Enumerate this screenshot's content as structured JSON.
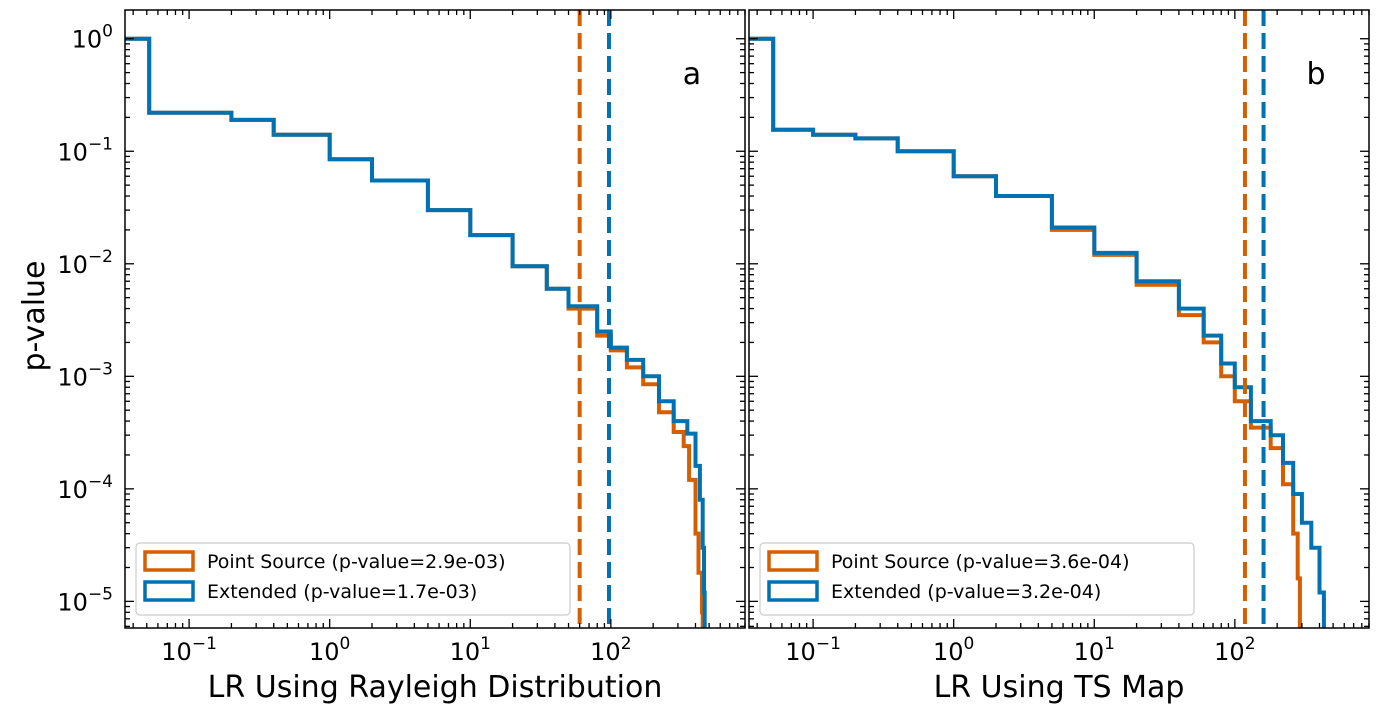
{
  "chart_data": [
    {
      "type": "line",
      "panel_label": "a",
      "xlabel": "LR Using Rayleigh Distribution",
      "ylabel": "p-value",
      "xscale": "log",
      "yscale": "log",
      "xlim": [
        0.035,
        900
      ],
      "ylim": [
        5.8e-06,
        1.8
      ],
      "x_ticks": [
        {
          "value": 0.1,
          "label": "10",
          "exp": "−1"
        },
        {
          "value": 1,
          "label": "10",
          "exp": "0"
        },
        {
          "value": 10,
          "label": "10",
          "exp": "1"
        },
        {
          "value": 100,
          "label": "10",
          "exp": "2"
        }
      ],
      "y_ticks": [
        {
          "value": 1,
          "label": "10",
          "exp": "0"
        },
        {
          "value": 0.1,
          "label": "10",
          "exp": "−1"
        },
        {
          "value": 0.01,
          "label": "10",
          "exp": "−2"
        },
        {
          "value": 0.001,
          "label": "10",
          "exp": "−3"
        },
        {
          "value": 0.0001,
          "label": "10",
          "exp": "−4"
        },
        {
          "value": 1e-05,
          "label": "10",
          "exp": "−5"
        }
      ],
      "grid": false,
      "legend_position": "lower-left",
      "series": [
        {
          "name": "Point Source (p-value=2.9e-03)",
          "color": "#d55e00",
          "vline": 60,
          "points": [
            [
              0.035,
              1.0
            ],
            [
              0.052,
              1.0
            ],
            [
              0.052,
              0.22
            ],
            [
              0.1,
              0.22
            ],
            [
              0.2,
              0.19
            ],
            [
              0.4,
              0.14
            ],
            [
              1,
              0.085
            ],
            [
              2,
              0.055
            ],
            [
              5,
              0.03
            ],
            [
              10,
              0.018
            ],
            [
              20,
              0.0095
            ],
            [
              35,
              0.006
            ],
            [
              50,
              0.004
            ],
            [
              80,
              0.0023
            ],
            [
              100,
              0.0017
            ],
            [
              130,
              0.0012
            ],
            [
              170,
              0.00085
            ],
            [
              220,
              0.00048
            ],
            [
              280,
              0.00032
            ],
            [
              330,
              0.00024
            ],
            [
              360,
              0.00012
            ],
            [
              400,
              4e-05
            ],
            [
              420,
              1.8e-05
            ],
            [
              445,
              8e-06
            ],
            [
              450,
              5.8e-06
            ]
          ]
        },
        {
          "name": "Extended (p-value=1.7e-03)",
          "color": "#0072b2",
          "vline": 97,
          "points": [
            [
              0.035,
              1.0
            ],
            [
              0.052,
              1.0
            ],
            [
              0.052,
              0.22
            ],
            [
              0.1,
              0.22
            ],
            [
              0.2,
              0.19
            ],
            [
              0.4,
              0.14
            ],
            [
              1,
              0.085
            ],
            [
              2,
              0.055
            ],
            [
              5,
              0.03
            ],
            [
              10,
              0.018
            ],
            [
              20,
              0.0095
            ],
            [
              35,
              0.006
            ],
            [
              50,
              0.0042
            ],
            [
              80,
              0.0025
            ],
            [
              100,
              0.0018
            ],
            [
              130,
              0.0014
            ],
            [
              170,
              0.001
            ],
            [
              220,
              0.0006
            ],
            [
              280,
              0.0004
            ],
            [
              350,
              0.00031
            ],
            [
              400,
              0.00016
            ],
            [
              430,
              8e-05
            ],
            [
              450,
              3e-05
            ],
            [
              460,
              1.2e-05
            ],
            [
              465,
              5.8e-06
            ]
          ]
        }
      ]
    },
    {
      "type": "line",
      "panel_label": "b",
      "xlabel": "LR Using TS Map",
      "ylabel": "",
      "xscale": "log",
      "yscale": "log",
      "xlim": [
        0.035,
        900
      ],
      "ylim": [
        5.8e-06,
        1.8
      ],
      "x_ticks": [
        {
          "value": 0.1,
          "label": "10",
          "exp": "−1"
        },
        {
          "value": 1,
          "label": "10",
          "exp": "0"
        },
        {
          "value": 10,
          "label": "10",
          "exp": "1"
        },
        {
          "value": 100,
          "label": "10",
          "exp": "2"
        }
      ],
      "y_ticks": [],
      "grid": false,
      "legend_position": "lower-left",
      "series": [
        {
          "name": "Point Source (p-value=3.6e-04)",
          "color": "#d55e00",
          "vline": 118,
          "points": [
            [
              0.035,
              1.0
            ],
            [
              0.052,
              1.0
            ],
            [
              0.052,
              0.155
            ],
            [
              0.1,
              0.155
            ],
            [
              0.1,
              0.14
            ],
            [
              0.2,
              0.13
            ],
            [
              0.4,
              0.1
            ],
            [
              1,
              0.06
            ],
            [
              2,
              0.04
            ],
            [
              5,
              0.02
            ],
            [
              10,
              0.012
            ],
            [
              20,
              0.0065
            ],
            [
              40,
              0.0035
            ],
            [
              60,
              0.002
            ],
            [
              80,
              0.001
            ],
            [
              100,
              0.0006
            ],
            [
              130,
              0.00035
            ],
            [
              180,
              0.00023
            ],
            [
              220,
              0.00011
            ],
            [
              260,
              4e-05
            ],
            [
              280,
              1.6e-05
            ],
            [
              290,
              5.8e-06
            ]
          ]
        },
        {
          "name": "Extended (p-value=3.2e-04)",
          "color": "#0072b2",
          "vline": 160,
          "points": [
            [
              0.035,
              1.0
            ],
            [
              0.052,
              1.0
            ],
            [
              0.052,
              0.155
            ],
            [
              0.1,
              0.155
            ],
            [
              0.1,
              0.14
            ],
            [
              0.2,
              0.13
            ],
            [
              0.4,
              0.1
            ],
            [
              1,
              0.06
            ],
            [
              2,
              0.04
            ],
            [
              5,
              0.021
            ],
            [
              10,
              0.0125
            ],
            [
              20,
              0.007
            ],
            [
              40,
              0.004
            ],
            [
              60,
              0.0023
            ],
            [
              80,
              0.0013
            ],
            [
              100,
              0.0008
            ],
            [
              130,
              0.0004
            ],
            [
              180,
              0.0003
            ],
            [
              220,
              0.00017
            ],
            [
              260,
              9e-05
            ],
            [
              300,
              5e-05
            ],
            [
              350,
              3e-05
            ],
            [
              400,
              1.2e-05
            ],
            [
              430,
              5.8e-06
            ]
          ]
        }
      ]
    }
  ]
}
